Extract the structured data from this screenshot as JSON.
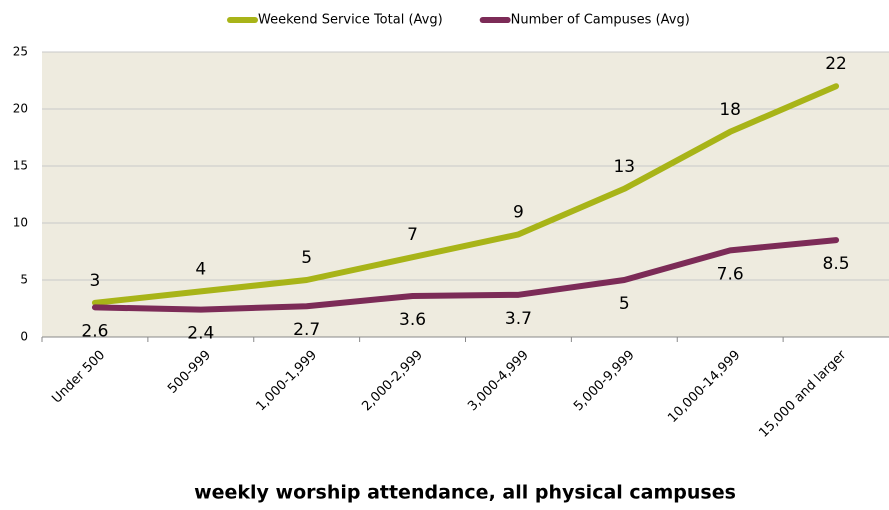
{
  "chart_data": {
    "type": "line",
    "x_label": "weekly worship attendance, all physical campuses",
    "categories": [
      "Under 500",
      "500-999",
      "1,000-1,999",
      "2,000-2,999",
      "3,000-4,999",
      "5,000-9,999",
      "10,000-14,999",
      "15,000 and larger"
    ],
    "series": [
      {
        "name": "Weekend Service Total (Avg)",
        "color": "#a8b418",
        "values": [
          3,
          4,
          5,
          7,
          9,
          13,
          18,
          22
        ]
      },
      {
        "name": "Number of Campuses (Avg)",
        "color": "#7c2b57",
        "values": [
          2.6,
          2.4,
          2.7,
          3.6,
          3.7,
          5,
          7.6,
          8.5
        ]
      }
    ],
    "ylim": [
      0,
      25
    ],
    "yticks": [
      0,
      5,
      10,
      15,
      20,
      25
    ],
    "grid": true,
    "legend": "top"
  }
}
